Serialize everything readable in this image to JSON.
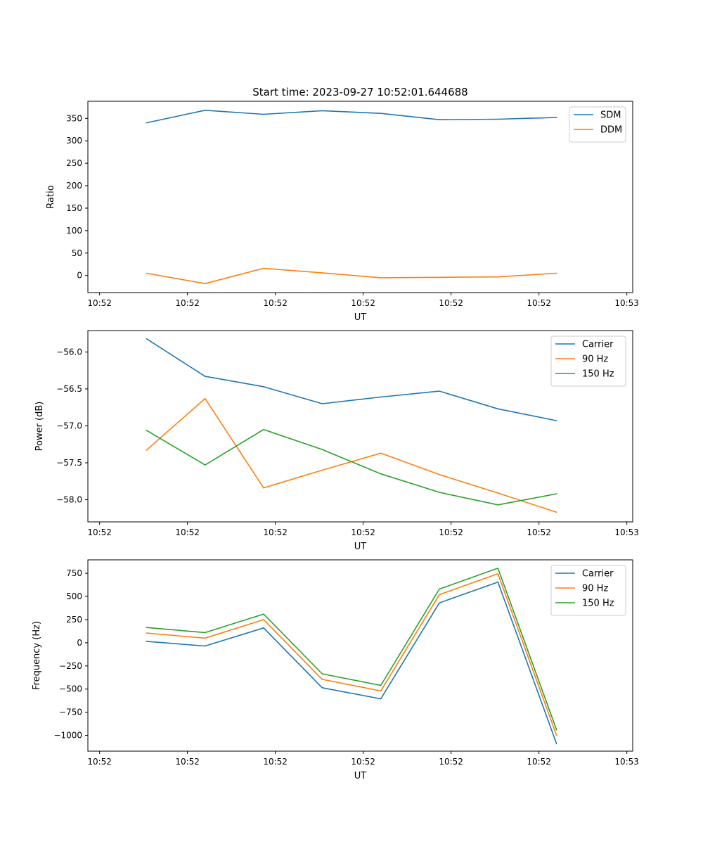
{
  "figure": {
    "title": "Start time: 2023-09-27 10:52:01.644688"
  },
  "colors": {
    "c0": "#1f77b4",
    "c1": "#ff7f0e",
    "c2": "#2ca02c"
  },
  "chart_data": [
    {
      "type": "line",
      "xlabel": "UT",
      "ylabel": "Ratio",
      "xlim": [
        0,
        9.3
      ],
      "ylim": [
        -38,
        388
      ],
      "xticks": [
        0.2,
        1.7,
        3.2,
        4.7,
        6.2,
        7.7,
        9.2
      ],
      "xtick_labels": [
        "10:52",
        "10:52",
        "10:52",
        "10:52",
        "10:52",
        "10:52",
        "10:53"
      ],
      "yticks": [
        0,
        50,
        100,
        150,
        200,
        250,
        300,
        350
      ],
      "ytick_labels": [
        "0",
        "50",
        "100",
        "150",
        "200",
        "250",
        "300",
        "350"
      ],
      "x": [
        1,
        2,
        3,
        4,
        5,
        6,
        7,
        8
      ],
      "legend": "top-right",
      "series": [
        {
          "name": "SDM",
          "color": "#1f77b4",
          "values": [
            340,
            368,
            359,
            367,
            361,
            347,
            348,
            352
          ]
        },
        {
          "name": "DDM",
          "color": "#ff7f0e",
          "values": [
            5,
            -18,
            16,
            6,
            -5,
            -4,
            -3,
            5
          ]
        }
      ]
    },
    {
      "type": "line",
      "xlabel": "UT",
      "ylabel": "Power (dB)",
      "xlim": [
        0,
        9.3
      ],
      "ylim": [
        -58.3,
        -55.71
      ],
      "xticks": [
        0.2,
        1.7,
        3.2,
        4.7,
        6.2,
        7.7,
        9.2
      ],
      "xtick_labels": [
        "10:52",
        "10:52",
        "10:52",
        "10:52",
        "10:52",
        "10:52",
        "10:53"
      ],
      "yticks": [
        -58.0,
        -57.5,
        -57.0,
        -56.5,
        -56.0
      ],
      "ytick_labels": [
        "−58.0",
        "−57.5",
        "−57.0",
        "−56.5",
        "−56.0"
      ],
      "x": [
        1,
        2,
        3,
        4,
        5,
        6,
        7,
        8
      ],
      "legend": "top-right",
      "series": [
        {
          "name": "Carrier",
          "color": "#1f77b4",
          "values": [
            -55.82,
            -56.33,
            -56.47,
            -56.7,
            -56.61,
            -56.53,
            -56.77,
            -56.93
          ]
        },
        {
          "name": "90 Hz",
          "color": "#ff7f0e",
          "values": [
            -57.33,
            -56.63,
            -57.84,
            -57.6,
            -57.37,
            -57.66,
            -57.91,
            -58.17
          ]
        },
        {
          "name": "150 Hz",
          "color": "#2ca02c",
          "values": [
            -57.06,
            -57.53,
            -57.05,
            -57.32,
            -57.65,
            -57.9,
            -58.07,
            -57.92
          ]
        }
      ]
    },
    {
      "type": "line",
      "xlabel": "UT",
      "ylabel": "Frequency (Hz)",
      "xlim": [
        0,
        9.3
      ],
      "ylim": [
        -1170,
        895
      ],
      "xticks": [
        0.2,
        1.7,
        3.2,
        4.7,
        6.2,
        7.7,
        9.2
      ],
      "xtick_labels": [
        "10:52",
        "10:52",
        "10:52",
        "10:52",
        "10:52",
        "10:52",
        "10:53"
      ],
      "yticks": [
        -1000,
        -750,
        -500,
        -250,
        0,
        250,
        500,
        750
      ],
      "ytick_labels": [
        "−1000",
        "−750",
        "−500",
        "−250",
        "0",
        "250",
        "500",
        "750"
      ],
      "x": [
        1,
        2,
        3,
        4,
        5,
        6,
        7,
        8
      ],
      "legend": "top-right",
      "series": [
        {
          "name": "Carrier",
          "color": "#1f77b4",
          "values": [
            15,
            -35,
            160,
            -485,
            -605,
            430,
            655,
            -1090
          ]
        },
        {
          "name": "90 Hz",
          "color": "#ff7f0e",
          "values": [
            105,
            50,
            250,
            -395,
            -520,
            520,
            745,
            -1000
          ]
        },
        {
          "name": "150 Hz",
          "color": "#2ca02c",
          "values": [
            165,
            110,
            310,
            -335,
            -460,
            580,
            805,
            -940
          ]
        }
      ]
    }
  ]
}
